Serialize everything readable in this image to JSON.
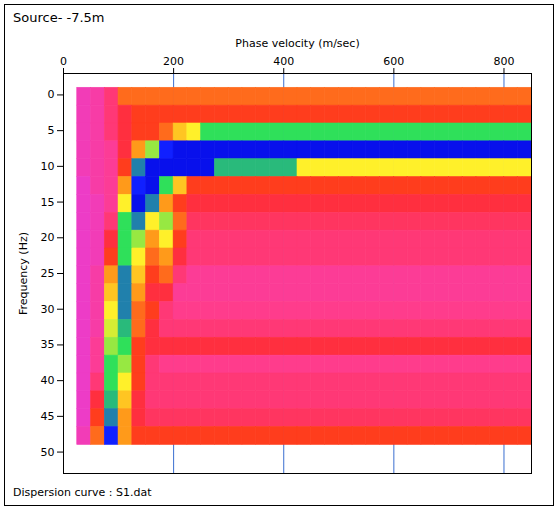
{
  "chart_data": {
    "type": "heatmap",
    "title": "Source- -7.5m",
    "caption": "Dispersion curve : S1.dat",
    "x_label": "Phase velocity (m/sec)",
    "y_label": "Frequency (Hz)",
    "xlim": [
      0,
      850
    ],
    "xticks": [
      0,
      200,
      400,
      600,
      800
    ],
    "ylim": [
      -3,
      53
    ],
    "yticks": [
      0,
      5,
      10,
      15,
      20,
      25,
      30,
      35,
      40,
      45,
      50
    ],
    "grid": true,
    "color_range": [
      0,
      1
    ],
    "velocity_bins": [
      25,
      50,
      75,
      100,
      125,
      150,
      175,
      200,
      225,
      250,
      275,
      300,
      325,
      350,
      375,
      400,
      425,
      450,
      475,
      500,
      525,
      550,
      575,
      600,
      625,
      650,
      675,
      700,
      725,
      750,
      775,
      800,
      825,
      850
    ],
    "frequency_bins": [
      -1,
      1.5,
      4,
      6.5,
      9,
      11.5,
      14,
      16.5,
      19,
      21.5,
      24,
      26.5,
      29,
      31.5,
      34,
      36.5,
      39,
      41.5,
      44,
      46.5,
      49
    ],
    "cells": [
      [
        0.25,
        0.3,
        0.4,
        0.55,
        0.55,
        0.55,
        0.55,
        0.55,
        0.55,
        0.55,
        0.55,
        0.55,
        0.55,
        0.55,
        0.55,
        0.55,
        0.55,
        0.55,
        0.55,
        0.55,
        0.55,
        0.55,
        0.55,
        0.55,
        0.55,
        0.55,
        0.55,
        0.55,
        0.55,
        0.55,
        0.55,
        0.55,
        0.55
      ],
      [
        0.25,
        0.3,
        0.4,
        0.45,
        0.5,
        0.5,
        0.5,
        0.5,
        0.5,
        0.5,
        0.5,
        0.5,
        0.5,
        0.5,
        0.5,
        0.5,
        0.5,
        0.5,
        0.5,
        0.5,
        0.5,
        0.5,
        0.5,
        0.5,
        0.5,
        0.5,
        0.5,
        0.5,
        0.5,
        0.5,
        0.5,
        0.5,
        0.5
      ],
      [
        0.25,
        0.3,
        0.4,
        0.45,
        0.5,
        0.5,
        0.55,
        0.65,
        0.7,
        0.8,
        0.8,
        0.8,
        0.8,
        0.8,
        0.8,
        0.8,
        0.8,
        0.8,
        0.8,
        0.8,
        0.8,
        0.8,
        0.8,
        0.8,
        0.8,
        0.8,
        0.8,
        0.8,
        0.8,
        0.8,
        0.8,
        0.8,
        0.8
      ],
      [
        0.25,
        0.3,
        0.35,
        0.45,
        0.6,
        0.75,
        0.9,
        0.95,
        0.95,
        0.95,
        0.95,
        0.95,
        0.95,
        0.95,
        0.95,
        0.95,
        0.95,
        0.95,
        0.95,
        0.95,
        0.95,
        0.95,
        0.95,
        0.95,
        0.95,
        0.95,
        0.95,
        0.95,
        0.95,
        0.95,
        0.95,
        0.95,
        0.95
      ],
      [
        0.25,
        0.3,
        0.35,
        0.5,
        0.85,
        0.95,
        0.95,
        0.95,
        0.95,
        0.95,
        0.82,
        0.82,
        0.82,
        0.82,
        0.82,
        0.82,
        0.7,
        0.7,
        0.7,
        0.7,
        0.7,
        0.7,
        0.7,
        0.7,
        0.7,
        0.7,
        0.7,
        0.7,
        0.7,
        0.7,
        0.7,
        0.7,
        0.7
      ],
      [
        0.2,
        0.3,
        0.35,
        0.6,
        0.9,
        0.95,
        0.8,
        0.65,
        0.5,
        0.5,
        0.5,
        0.5,
        0.5,
        0.5,
        0.5,
        0.5,
        0.5,
        0.5,
        0.5,
        0.5,
        0.5,
        0.5,
        0.5,
        0.5,
        0.5,
        0.5,
        0.5,
        0.5,
        0.5,
        0.5,
        0.5,
        0.5,
        0.5
      ],
      [
        0.2,
        0.25,
        0.35,
        0.7,
        0.95,
        0.85,
        0.6,
        0.5,
        0.45,
        0.45,
        0.45,
        0.45,
        0.45,
        0.45,
        0.45,
        0.45,
        0.45,
        0.45,
        0.45,
        0.45,
        0.45,
        0.45,
        0.45,
        0.45,
        0.45,
        0.45,
        0.45,
        0.45,
        0.45,
        0.45,
        0.45,
        0.45,
        0.45
      ],
      [
        0.2,
        0.25,
        0.4,
        0.8,
        0.85,
        0.7,
        0.75,
        0.55,
        0.42,
        0.42,
        0.42,
        0.42,
        0.42,
        0.42,
        0.42,
        0.42,
        0.42,
        0.42,
        0.42,
        0.42,
        0.42,
        0.42,
        0.42,
        0.42,
        0.42,
        0.42,
        0.42,
        0.42,
        0.42,
        0.42,
        0.42,
        0.42,
        0.42
      ],
      [
        0.2,
        0.25,
        0.45,
        0.8,
        0.75,
        0.6,
        0.7,
        0.5,
        0.4,
        0.4,
        0.4,
        0.4,
        0.4,
        0.4,
        0.4,
        0.4,
        0.4,
        0.4,
        0.4,
        0.4,
        0.4,
        0.4,
        0.4,
        0.4,
        0.4,
        0.4,
        0.4,
        0.4,
        0.4,
        0.4,
        0.4,
        0.4,
        0.4
      ],
      [
        0.2,
        0.25,
        0.5,
        0.8,
        0.7,
        0.55,
        0.6,
        0.45,
        0.4,
        0.4,
        0.4,
        0.4,
        0.4,
        0.4,
        0.4,
        0.4,
        0.4,
        0.4,
        0.4,
        0.4,
        0.4,
        0.4,
        0.4,
        0.4,
        0.4,
        0.4,
        0.4,
        0.4,
        0.4,
        0.4,
        0.4,
        0.4,
        0.4
      ],
      [
        0.2,
        0.3,
        0.6,
        0.85,
        0.65,
        0.5,
        0.55,
        0.4,
        0.35,
        0.35,
        0.35,
        0.35,
        0.35,
        0.35,
        0.35,
        0.35,
        0.35,
        0.35,
        0.35,
        0.35,
        0.35,
        0.35,
        0.35,
        0.35,
        0.35,
        0.35,
        0.35,
        0.35,
        0.35,
        0.35,
        0.35,
        0.35,
        0.35
      ],
      [
        0.2,
        0.3,
        0.65,
        0.85,
        0.6,
        0.45,
        0.45,
        0.35,
        0.35,
        0.35,
        0.35,
        0.35,
        0.35,
        0.35,
        0.35,
        0.35,
        0.35,
        0.35,
        0.35,
        0.35,
        0.35,
        0.35,
        0.35,
        0.35,
        0.35,
        0.35,
        0.35,
        0.35,
        0.35,
        0.35,
        0.35,
        0.35,
        0.35
      ],
      [
        0.2,
        0.3,
        0.7,
        0.85,
        0.55,
        0.5,
        0.4,
        0.38,
        0.38,
        0.38,
        0.38,
        0.38,
        0.38,
        0.38,
        0.38,
        0.38,
        0.38,
        0.38,
        0.38,
        0.38,
        0.38,
        0.38,
        0.38,
        0.38,
        0.38,
        0.38,
        0.38,
        0.38,
        0.38,
        0.38,
        0.38,
        0.38,
        0.38
      ],
      [
        0.2,
        0.3,
        0.72,
        0.82,
        0.55,
        0.45,
        0.4,
        0.4,
        0.4,
        0.4,
        0.4,
        0.4,
        0.4,
        0.4,
        0.4,
        0.4,
        0.4,
        0.4,
        0.4,
        0.4,
        0.4,
        0.4,
        0.4,
        0.4,
        0.4,
        0.4,
        0.4,
        0.4,
        0.4,
        0.4,
        0.4,
        0.4,
        0.4
      ],
      [
        0.2,
        0.35,
        0.75,
        0.8,
        0.5,
        0.45,
        0.45,
        0.45,
        0.45,
        0.45,
        0.45,
        0.45,
        0.45,
        0.45,
        0.45,
        0.45,
        0.45,
        0.45,
        0.45,
        0.45,
        0.45,
        0.45,
        0.45,
        0.45,
        0.45,
        0.45,
        0.45,
        0.45,
        0.45,
        0.45,
        0.45,
        0.45,
        0.45
      ],
      [
        0.2,
        0.35,
        0.8,
        0.75,
        0.5,
        0.4,
        0.38,
        0.38,
        0.38,
        0.38,
        0.38,
        0.38,
        0.38,
        0.38,
        0.38,
        0.38,
        0.38,
        0.38,
        0.38,
        0.38,
        0.38,
        0.38,
        0.38,
        0.38,
        0.38,
        0.38,
        0.38,
        0.38,
        0.38,
        0.38,
        0.38,
        0.38,
        0.38
      ],
      [
        0.2,
        0.4,
        0.8,
        0.7,
        0.5,
        0.4,
        0.4,
        0.4,
        0.4,
        0.4,
        0.4,
        0.4,
        0.4,
        0.4,
        0.4,
        0.4,
        0.4,
        0.4,
        0.4,
        0.4,
        0.4,
        0.4,
        0.4,
        0.4,
        0.4,
        0.4,
        0.4,
        0.4,
        0.4,
        0.4,
        0.4,
        0.4,
        0.4
      ],
      [
        0.2,
        0.45,
        0.82,
        0.65,
        0.45,
        0.4,
        0.4,
        0.4,
        0.4,
        0.4,
        0.4,
        0.4,
        0.4,
        0.4,
        0.4,
        0.4,
        0.4,
        0.4,
        0.4,
        0.4,
        0.4,
        0.4,
        0.4,
        0.4,
        0.4,
        0.4,
        0.4,
        0.4,
        0.4,
        0.4,
        0.4,
        0.4,
        0.4
      ],
      [
        0.2,
        0.5,
        0.85,
        0.6,
        0.45,
        0.42,
        0.42,
        0.42,
        0.42,
        0.42,
        0.42,
        0.42,
        0.42,
        0.42,
        0.42,
        0.42,
        0.42,
        0.42,
        0.42,
        0.42,
        0.42,
        0.42,
        0.42,
        0.42,
        0.42,
        0.42,
        0.42,
        0.42,
        0.42,
        0.42,
        0.42,
        0.42,
        0.42
      ],
      [
        0.25,
        0.55,
        0.9,
        0.6,
        0.5,
        0.5,
        0.5,
        0.5,
        0.5,
        0.5,
        0.5,
        0.5,
        0.5,
        0.5,
        0.5,
        0.5,
        0.5,
        0.5,
        0.5,
        0.5,
        0.5,
        0.5,
        0.5,
        0.5,
        0.5,
        0.5,
        0.5,
        0.5,
        0.5,
        0.5,
        0.5,
        0.5,
        0.5
      ]
    ]
  }
}
